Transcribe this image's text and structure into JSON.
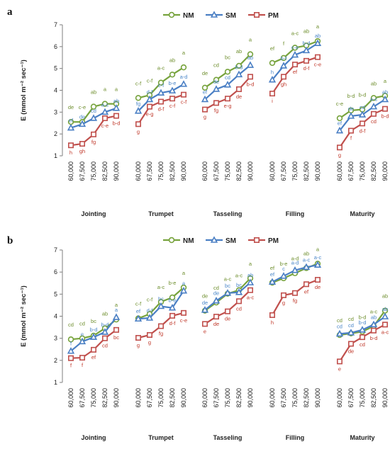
{
  "figure": {
    "colors": {
      "NM": "#77a33d",
      "SM": "#4a7fc4",
      "PM": "#c0504d"
    },
    "sig_colors": {
      "NM": "#6f8f2f",
      "SM": "#4a86c8",
      "PM": "#c0392b"
    }
  },
  "chart_data": [
    {
      "panel": "a",
      "type": "line",
      "ylabel": "E (mmol m⁻² sec⁻¹)",
      "ylim": [
        1,
        7
      ],
      "yticks": [
        "1",
        "2",
        "3",
        "4",
        "5",
        "6",
        "7"
      ],
      "legend": [
        "NM",
        "SM",
        "PM"
      ],
      "legend_position": "top-center",
      "x_labels": [
        "60,000",
        "67,500",
        "75,000",
        "82,500",
        "90,000"
      ],
      "groups": [
        {
          "name": "Jointing",
          "series": [
            {
              "name": "NM",
              "values": [
                2.55,
                2.55,
                3.25,
                3.38,
                3.38
              ],
              "labels": [
                "de",
                "c-e",
                "ab",
                "a",
                "a"
              ]
            },
            {
              "name": "SM",
              "values": [
                2.28,
                2.45,
                2.72,
                3.0,
                3.18
              ],
              "labels": [
                "ef",
                "de",
                "cd",
                "a-c",
                "ab"
              ]
            },
            {
              "name": "PM",
              "values": [
                1.48,
                1.55,
                1.98,
                2.72,
                2.83
              ],
              "labels": [
                "h",
                "gh",
                "fg",
                "c-e",
                "b-d"
              ]
            }
          ]
        },
        {
          "name": "Trumpet",
          "series": [
            {
              "name": "NM",
              "values": [
                3.65,
                3.78,
                4.35,
                4.72,
                5.05
              ],
              "labels": [
                "c-f",
                "c-f",
                "a-c",
                "ab",
                "a"
              ]
            },
            {
              "name": "SM",
              "values": [
                3.05,
                3.58,
                3.88,
                3.98,
                4.28
              ],
              "labels": [
                "fg",
                "d-f",
                "c-f",
                "b-e",
                "a-d"
              ]
            },
            {
              "name": "PM",
              "values": [
                2.45,
                3.25,
                3.48,
                3.62,
                3.8
              ],
              "labels": [
                "g",
                "e-g",
                "d-f",
                "c-f",
                "c-f"
              ]
            }
          ]
        },
        {
          "name": "Tasseling",
          "series": [
            {
              "name": "NM",
              "values": [
                4.12,
                4.48,
                4.85,
                5.12,
                5.65
              ],
              "labels": [
                "de",
                "cd",
                "bc",
                "ab",
                "a"
              ]
            },
            {
              "name": "SM",
              "values": [
                3.58,
                4.05,
                4.25,
                4.72,
                5.15
              ],
              "labels": [
                "ef",
                "de",
                "cd",
                "b-d",
                "ab"
              ]
            },
            {
              "name": "PM",
              "values": [
                3.12,
                3.42,
                3.62,
                4.05,
                4.62
              ],
              "labels": [
                "g",
                "fg",
                "e-g",
                "de",
                "b-d"
              ]
            }
          ]
        },
        {
          "name": "Filling",
          "series": [
            {
              "name": "NM",
              "values": [
                5.25,
                5.48,
                5.95,
                6.05,
                6.25
              ],
              "labels": [
                "ef",
                "f",
                "a-c",
                "ab",
                "a"
              ]
            },
            {
              "name": "SM",
              "values": [
                4.48,
                5.12,
                5.62,
                5.82,
                6.15
              ],
              "labels": [
                "h",
                "b-f",
                "c-e",
                "b-d",
                "ab"
              ]
            },
            {
              "name": "PM",
              "values": [
                3.85,
                4.62,
                5.18,
                5.35,
                5.52
              ],
              "labels": [
                "i",
                "gh",
                "ef",
                "d-f",
                "c-e"
              ]
            }
          ]
        },
        {
          "name": "Maturity",
          "series": [
            {
              "name": "NM",
              "values": [
                2.72,
                3.08,
                3.12,
                3.65,
                3.75
              ],
              "labels": [
                "c-e",
                "b-d",
                "b-d",
                "ab",
                "a"
              ]
            },
            {
              "name": "SM",
              "values": [
                2.15,
                2.82,
                2.88,
                3.25,
                3.58
              ],
              "labels": [
                "ef",
                "de",
                "cd",
                "a-c",
                "ab"
              ]
            },
            {
              "name": "PM",
              "values": [
                1.38,
                2.15,
                2.48,
                2.92,
                3.15
              ],
              "labels": [
                "g",
                "f",
                "d-f",
                "cd",
                "b-d"
              ]
            }
          ]
        }
      ]
    },
    {
      "panel": "b",
      "type": "line",
      "ylabel": "E (mmol m⁻² sec⁻¹)",
      "ylim": [
        1,
        7
      ],
      "yticks": [
        "1",
        "2",
        "3",
        "4",
        "5",
        "6",
        "7"
      ],
      "legend": [
        "NM",
        "SM",
        "PM"
      ],
      "legend_position": "top-center",
      "x_labels": [
        "60,000",
        "67,500",
        "75,000",
        "82,500",
        "90,000"
      ],
      "groups": [
        {
          "name": "Jointing",
          "series": [
            {
              "name": "NM",
              "values": [
                2.95,
                3.0,
                3.12,
                3.45,
                3.85
              ],
              "labels": [
                "cd",
                "cd",
                "bc",
                "ab",
                "a"
              ]
            },
            {
              "name": "SM",
              "values": [
                2.42,
                2.85,
                3.05,
                3.28,
                3.95
              ],
              "labels": [
                "f",
                "e",
                "b-d",
                "b-d",
                "a"
              ]
            },
            {
              "name": "PM",
              "values": [
                2.1,
                2.12,
                2.48,
                3.0,
                3.38
              ],
              "labels": [
                "f",
                "f",
                "ef",
                "cd",
                "bc"
              ]
            }
          ]
        },
        {
          "name": "Trumpet",
          "series": [
            {
              "name": "NM",
              "values": [
                3.9,
                4.1,
                4.65,
                4.85,
                5.3
              ],
              "labels": [
                "c-f",
                "c-f",
                "a-c",
                "b-e",
                "a"
              ]
            },
            {
              "name": "SM",
              "values": [
                3.88,
                3.92,
                4.45,
                4.38,
                5.15
              ],
              "labels": [
                "ef",
                "d-f",
                "bc",
                "b-e",
                "a"
              ]
            },
            {
              "name": "PM",
              "values": [
                3.02,
                3.15,
                3.55,
                4.02,
                4.15
              ],
              "labels": [
                "g",
                "g",
                "fg",
                "d-f",
                "c-e"
              ]
            }
          ]
        },
        {
          "name": "Tasseling",
          "series": [
            {
              "name": "NM",
              "values": [
                4.25,
                4.62,
                5.02,
                5.18,
                5.72
              ],
              "labels": [
                "de",
                "cd",
                "a-c",
                "a-c",
                "a"
              ]
            },
            {
              "name": "SM",
              "values": [
                4.28,
                4.7,
                5.05,
                5.08,
                5.52
              ],
              "labels": [
                "de",
                "de",
                "bc",
                "bc",
                "ab"
              ]
            },
            {
              "name": "PM",
              "values": [
                3.65,
                3.98,
                4.22,
                4.68,
                5.18
              ],
              "labels": [
                "e",
                "de",
                "de",
                "cd",
                "a-c"
              ]
            }
          ]
        },
        {
          "name": "Filling",
          "series": [
            {
              "name": "NM",
              "values": [
                5.52,
                5.72,
                5.95,
                6.18,
                6.38
              ],
              "labels": [
                "ef",
                "b-e",
                "a-d",
                "ab",
                "a"
              ]
            },
            {
              "name": "SM",
              "values": [
                5.55,
                5.82,
                6.08,
                6.22,
                6.32
              ],
              "labels": [
                "ef",
                "c",
                "a-d",
                "a-c",
                "a-c"
              ]
            },
            {
              "name": "PM",
              "values": [
                4.05,
                4.95,
                5.05,
                5.45,
                5.65
              ],
              "labels": [
                "h",
                "g",
                "fg",
                "ef",
                "de"
              ]
            }
          ]
        },
        {
          "name": "Maturity",
          "series": [
            {
              "name": "NM",
              "values": [
                3.15,
                3.22,
                3.3,
                3.55,
                4.25
              ],
              "labels": [
                "cd",
                "cd",
                "b-d",
                "a-c",
                "ab"
              ]
            },
            {
              "name": "SM",
              "values": [
                3.2,
                3.25,
                3.38,
                3.62,
                3.98
              ],
              "labels": [
                "cd",
                "cd",
                "b-d",
                "ab",
                "ab"
              ]
            },
            {
              "name": "PM",
              "values": [
                1.95,
                2.75,
                3.05,
                3.35,
                3.62
              ],
              "labels": [
                "e",
                "de",
                "cd",
                "b-d",
                "a-c"
              ]
            }
          ]
        }
      ]
    }
  ]
}
